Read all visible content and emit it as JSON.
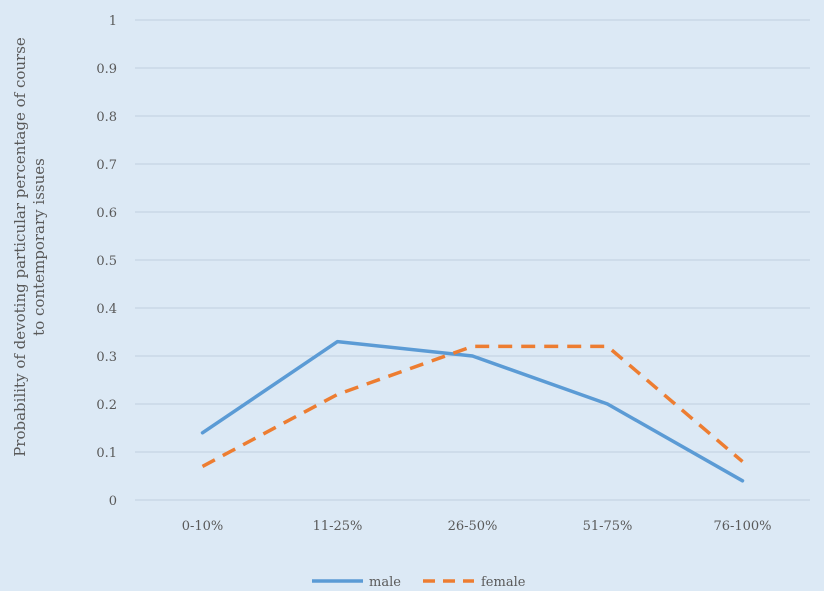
{
  "chart_data": {
    "type": "line",
    "title": "",
    "xlabel": "",
    "ylabel_lines": [
      "Probability of devoting particular percentage of course",
      "to contemporary issues"
    ],
    "categories": [
      "0-10%",
      "11-25%",
      "26-50%",
      "51-75%",
      "76-100%"
    ],
    "yticks": [
      "0",
      "0.1",
      "0.2",
      "0.3",
      "0.4",
      "0.5",
      "0.6",
      "0.7",
      "0.8",
      "0.9",
      "1"
    ],
    "ylim": [
      0,
      1
    ],
    "grid": true,
    "legend_position": "bottom",
    "series": [
      {
        "name": "male",
        "values": [
          0.14,
          0.33,
          0.3,
          0.2,
          0.04
        ],
        "color": "#5b9bd5",
        "style": "solid"
      },
      {
        "name": "female",
        "values": [
          0.07,
          0.22,
          0.32,
          0.32,
          0.08
        ],
        "color": "#ed7d31",
        "style": "dashed"
      }
    ]
  },
  "colors": {
    "background": "#dce9f5",
    "grid": "#bfcfdf",
    "text": "#595959"
  }
}
